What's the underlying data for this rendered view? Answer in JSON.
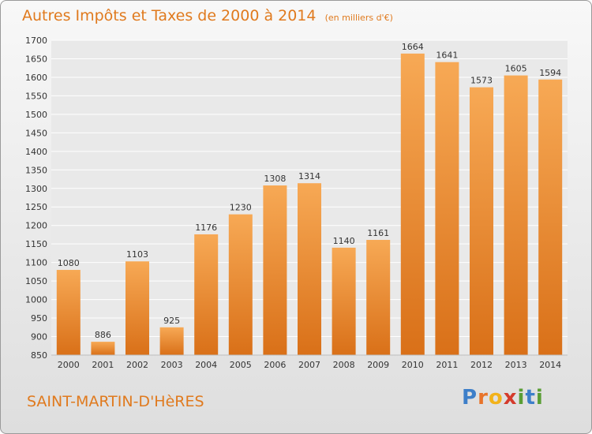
{
  "header": {
    "title": "Autres Impôts et Taxes de 2000 à 2014",
    "subtitle": "(en milliers d'€)"
  },
  "footer": {
    "location": "SAINT-MARTIN-D'HèRES"
  },
  "logo": {
    "letters": [
      "P",
      "r",
      "o",
      "x",
      "i",
      "t",
      "i"
    ],
    "colors": [
      "#3d7fc9",
      "#e8732a",
      "#f2b21a",
      "#d43b2c",
      "#5a9e35",
      "#3d7fc9",
      "#5a9e35"
    ]
  },
  "colors": {
    "bar_top": "#f7a955",
    "bar_bottom": "#d97018",
    "text": "#e07a1e",
    "grid": "#ffffff"
  },
  "chart_data": {
    "type": "bar",
    "title": "Autres Impôts et Taxes de 2000 à 2014",
    "subtitle": "(en milliers d'€)",
    "xlabel": "",
    "ylabel": "",
    "categories": [
      "2000",
      "2001",
      "2002",
      "2003",
      "2004",
      "2005",
      "2006",
      "2007",
      "2008",
      "2009",
      "2010",
      "2011",
      "2012",
      "2013",
      "2014"
    ],
    "values": [
      1080,
      886,
      1103,
      925,
      1176,
      1230,
      1308,
      1314,
      1140,
      1161,
      1664,
      1641,
      1573,
      1605,
      1594
    ],
    "ylim": [
      850,
      1700
    ],
    "yticks": [
      850,
      900,
      950,
      1000,
      1050,
      1100,
      1150,
      1200,
      1250,
      1300,
      1350,
      1400,
      1450,
      1500,
      1550,
      1600,
      1650,
      1700
    ],
    "grid": true,
    "legend": "none"
  }
}
